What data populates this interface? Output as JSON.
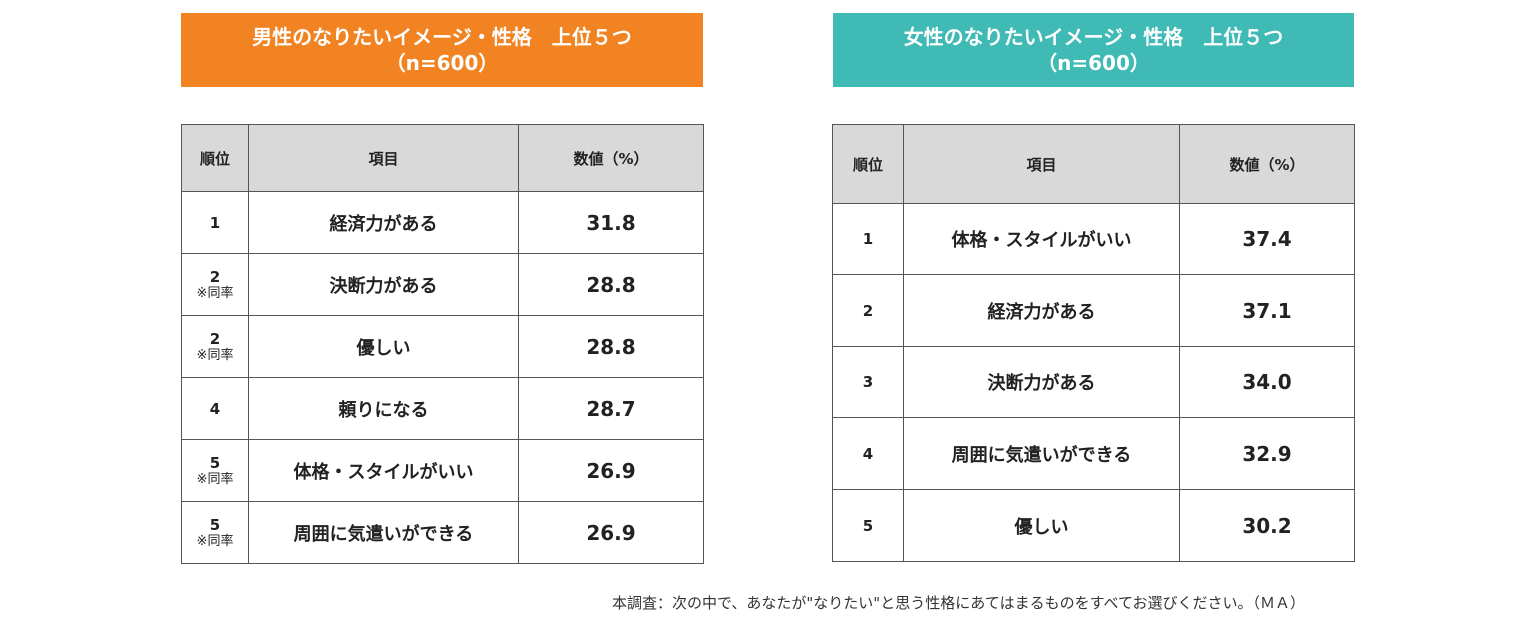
{
  "colors": {
    "male_header": "#f28322",
    "female_header": "#3fbab5",
    "table_header_bg": "#d9d9d9"
  },
  "male": {
    "title_line1": "男性のなりたいイメージ・性格　上位５つ",
    "title_line2": "（n=600）",
    "headers": {
      "rank": "順位",
      "item": "項目",
      "value": "数値（%）"
    },
    "rows": [
      {
        "rank": "1",
        "note": "",
        "item": "経済力がある",
        "value": "31.8"
      },
      {
        "rank": "2",
        "note": "※同率",
        "item": "決断力がある",
        "value": "28.8"
      },
      {
        "rank": "2",
        "note": "※同率",
        "item": "優しい",
        "value": "28.8"
      },
      {
        "rank": "4",
        "note": "",
        "item": "頼りになる",
        "value": "28.7"
      },
      {
        "rank": "5",
        "note": "※同率",
        "item": "体格・スタイルがいい",
        "value": "26.9"
      },
      {
        "rank": "5",
        "note": "※同率",
        "item": "周囲に気遣いができる",
        "value": "26.9"
      }
    ]
  },
  "female": {
    "title_line1": "女性のなりたいイメージ・性格　上位５つ",
    "title_line2": "（n=600）",
    "headers": {
      "rank": "順位",
      "item": "項目",
      "value": "数値（%）"
    },
    "rows": [
      {
        "rank": "1",
        "item": "体格・スタイルがいい",
        "value": "37.4"
      },
      {
        "rank": "2",
        "item": "経済力がある",
        "value": "37.1"
      },
      {
        "rank": "3",
        "item": "決断力がある",
        "value": "34.0"
      },
      {
        "rank": "4",
        "item": "周囲に気遣いができる",
        "value": "32.9"
      },
      {
        "rank": "5",
        "item": "優しい",
        "value": "30.2"
      }
    ]
  },
  "footnote": "本調査：次の中で、あなたが\"なりたい\"と思う性格にあてはまるものをすべてお選びください。（ＭＡ）"
}
